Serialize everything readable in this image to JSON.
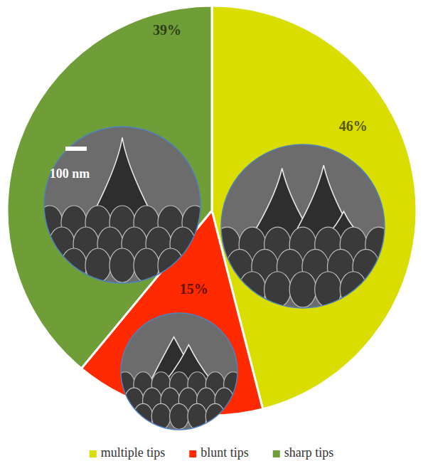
{
  "chart_data": {
    "type": "pie",
    "categories": [
      "multiple tips",
      "blunt tips",
      "sharp tips"
    ],
    "values": [
      46,
      15,
      39
    ],
    "value_labels": [
      "46%",
      "15%",
      "39%"
    ],
    "colors": [
      "#d9dd00",
      "#ff2a00",
      "#6f9e38"
    ],
    "data_labels": true,
    "legend": "bottom",
    "annotations": [
      "100 nm"
    ]
  }
}
